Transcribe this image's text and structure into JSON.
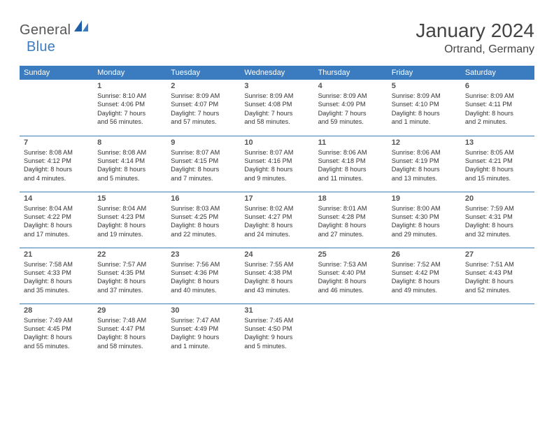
{
  "brand": {
    "part1": "General",
    "part2": "Blue"
  },
  "title": "January 2024",
  "location": "Ortrand, Germany",
  "colors": {
    "header_bg": "#3b7bbf",
    "header_text": "#ffffff",
    "rule": "#3b7bbf",
    "text": "#333333",
    "daynum": "#555555",
    "page_bg": "#ffffff",
    "brand_gray": "#555555",
    "brand_blue": "#3b7bbf"
  },
  "day_headers": [
    "Sunday",
    "Monday",
    "Tuesday",
    "Wednesday",
    "Thursday",
    "Friday",
    "Saturday"
  ],
  "weeks": [
    [
      {
        "n": "",
        "sr": "",
        "ss": "",
        "d1": "",
        "d2": ""
      },
      {
        "n": "1",
        "sr": "Sunrise: 8:10 AM",
        "ss": "Sunset: 4:06 PM",
        "d1": "Daylight: 7 hours",
        "d2": "and 56 minutes."
      },
      {
        "n": "2",
        "sr": "Sunrise: 8:09 AM",
        "ss": "Sunset: 4:07 PM",
        "d1": "Daylight: 7 hours",
        "d2": "and 57 minutes."
      },
      {
        "n": "3",
        "sr": "Sunrise: 8:09 AM",
        "ss": "Sunset: 4:08 PM",
        "d1": "Daylight: 7 hours",
        "d2": "and 58 minutes."
      },
      {
        "n": "4",
        "sr": "Sunrise: 8:09 AM",
        "ss": "Sunset: 4:09 PM",
        "d1": "Daylight: 7 hours",
        "d2": "and 59 minutes."
      },
      {
        "n": "5",
        "sr": "Sunrise: 8:09 AM",
        "ss": "Sunset: 4:10 PM",
        "d1": "Daylight: 8 hours",
        "d2": "and 1 minute."
      },
      {
        "n": "6",
        "sr": "Sunrise: 8:09 AM",
        "ss": "Sunset: 4:11 PM",
        "d1": "Daylight: 8 hours",
        "d2": "and 2 minutes."
      }
    ],
    [
      {
        "n": "7",
        "sr": "Sunrise: 8:08 AM",
        "ss": "Sunset: 4:12 PM",
        "d1": "Daylight: 8 hours",
        "d2": "and 4 minutes."
      },
      {
        "n": "8",
        "sr": "Sunrise: 8:08 AM",
        "ss": "Sunset: 4:14 PM",
        "d1": "Daylight: 8 hours",
        "d2": "and 5 minutes."
      },
      {
        "n": "9",
        "sr": "Sunrise: 8:07 AM",
        "ss": "Sunset: 4:15 PM",
        "d1": "Daylight: 8 hours",
        "d2": "and 7 minutes."
      },
      {
        "n": "10",
        "sr": "Sunrise: 8:07 AM",
        "ss": "Sunset: 4:16 PM",
        "d1": "Daylight: 8 hours",
        "d2": "and 9 minutes."
      },
      {
        "n": "11",
        "sr": "Sunrise: 8:06 AM",
        "ss": "Sunset: 4:18 PM",
        "d1": "Daylight: 8 hours",
        "d2": "and 11 minutes."
      },
      {
        "n": "12",
        "sr": "Sunrise: 8:06 AM",
        "ss": "Sunset: 4:19 PM",
        "d1": "Daylight: 8 hours",
        "d2": "and 13 minutes."
      },
      {
        "n": "13",
        "sr": "Sunrise: 8:05 AM",
        "ss": "Sunset: 4:21 PM",
        "d1": "Daylight: 8 hours",
        "d2": "and 15 minutes."
      }
    ],
    [
      {
        "n": "14",
        "sr": "Sunrise: 8:04 AM",
        "ss": "Sunset: 4:22 PM",
        "d1": "Daylight: 8 hours",
        "d2": "and 17 minutes."
      },
      {
        "n": "15",
        "sr": "Sunrise: 8:04 AM",
        "ss": "Sunset: 4:23 PM",
        "d1": "Daylight: 8 hours",
        "d2": "and 19 minutes."
      },
      {
        "n": "16",
        "sr": "Sunrise: 8:03 AM",
        "ss": "Sunset: 4:25 PM",
        "d1": "Daylight: 8 hours",
        "d2": "and 22 minutes."
      },
      {
        "n": "17",
        "sr": "Sunrise: 8:02 AM",
        "ss": "Sunset: 4:27 PM",
        "d1": "Daylight: 8 hours",
        "d2": "and 24 minutes."
      },
      {
        "n": "18",
        "sr": "Sunrise: 8:01 AM",
        "ss": "Sunset: 4:28 PM",
        "d1": "Daylight: 8 hours",
        "d2": "and 27 minutes."
      },
      {
        "n": "19",
        "sr": "Sunrise: 8:00 AM",
        "ss": "Sunset: 4:30 PM",
        "d1": "Daylight: 8 hours",
        "d2": "and 29 minutes."
      },
      {
        "n": "20",
        "sr": "Sunrise: 7:59 AM",
        "ss": "Sunset: 4:31 PM",
        "d1": "Daylight: 8 hours",
        "d2": "and 32 minutes."
      }
    ],
    [
      {
        "n": "21",
        "sr": "Sunrise: 7:58 AM",
        "ss": "Sunset: 4:33 PM",
        "d1": "Daylight: 8 hours",
        "d2": "and 35 minutes."
      },
      {
        "n": "22",
        "sr": "Sunrise: 7:57 AM",
        "ss": "Sunset: 4:35 PM",
        "d1": "Daylight: 8 hours",
        "d2": "and 37 minutes."
      },
      {
        "n": "23",
        "sr": "Sunrise: 7:56 AM",
        "ss": "Sunset: 4:36 PM",
        "d1": "Daylight: 8 hours",
        "d2": "and 40 minutes."
      },
      {
        "n": "24",
        "sr": "Sunrise: 7:55 AM",
        "ss": "Sunset: 4:38 PM",
        "d1": "Daylight: 8 hours",
        "d2": "and 43 minutes."
      },
      {
        "n": "25",
        "sr": "Sunrise: 7:53 AM",
        "ss": "Sunset: 4:40 PM",
        "d1": "Daylight: 8 hours",
        "d2": "and 46 minutes."
      },
      {
        "n": "26",
        "sr": "Sunrise: 7:52 AM",
        "ss": "Sunset: 4:42 PM",
        "d1": "Daylight: 8 hours",
        "d2": "and 49 minutes."
      },
      {
        "n": "27",
        "sr": "Sunrise: 7:51 AM",
        "ss": "Sunset: 4:43 PM",
        "d1": "Daylight: 8 hours",
        "d2": "and 52 minutes."
      }
    ],
    [
      {
        "n": "28",
        "sr": "Sunrise: 7:49 AM",
        "ss": "Sunset: 4:45 PM",
        "d1": "Daylight: 8 hours",
        "d2": "and 55 minutes."
      },
      {
        "n": "29",
        "sr": "Sunrise: 7:48 AM",
        "ss": "Sunset: 4:47 PM",
        "d1": "Daylight: 8 hours",
        "d2": "and 58 minutes."
      },
      {
        "n": "30",
        "sr": "Sunrise: 7:47 AM",
        "ss": "Sunset: 4:49 PM",
        "d1": "Daylight: 9 hours",
        "d2": "and 1 minute."
      },
      {
        "n": "31",
        "sr": "Sunrise: 7:45 AM",
        "ss": "Sunset: 4:50 PM",
        "d1": "Daylight: 9 hours",
        "d2": "and 5 minutes."
      },
      {
        "n": "",
        "sr": "",
        "ss": "",
        "d1": "",
        "d2": ""
      },
      {
        "n": "",
        "sr": "",
        "ss": "",
        "d1": "",
        "d2": ""
      },
      {
        "n": "",
        "sr": "",
        "ss": "",
        "d1": "",
        "d2": ""
      }
    ]
  ]
}
